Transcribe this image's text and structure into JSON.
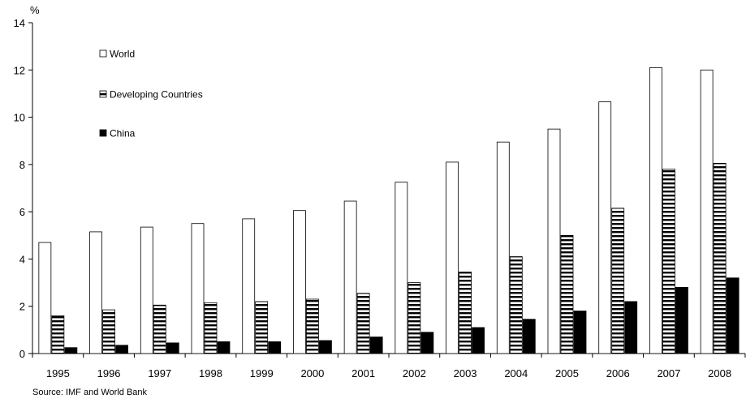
{
  "chart_data": {
    "type": "bar",
    "unit_label": "%",
    "categories": [
      "1995",
      "1996",
      "1997",
      "1998",
      "1999",
      "2000",
      "2001",
      "2002",
      "2003",
      "2004",
      "2005",
      "2006",
      "2007",
      "2008"
    ],
    "series": [
      {
        "name": "World",
        "pattern": "white",
        "values": [
          4.7,
          5.15,
          5.35,
          5.5,
          5.7,
          6.05,
          6.45,
          7.25,
          8.1,
          8.95,
          9.5,
          10.65,
          12.1,
          12.0
        ]
      },
      {
        "name": "Developing Countries",
        "pattern": "striped",
        "values": [
          1.6,
          1.85,
          2.05,
          2.15,
          2.2,
          2.3,
          2.55,
          3.0,
          3.45,
          4.1,
          5.0,
          6.15,
          7.8,
          8.05
        ]
      },
      {
        "name": "China",
        "pattern": "black",
        "values": [
          0.25,
          0.35,
          0.45,
          0.5,
          0.5,
          0.55,
          0.7,
          0.9,
          1.1,
          1.45,
          1.8,
          2.2,
          2.8,
          3.2
        ]
      }
    ],
    "ylim": [
      0,
      14
    ],
    "yticks": [
      0,
      2,
      4,
      6,
      8,
      10,
      12,
      14
    ],
    "legend_position": "top-left",
    "grid": false,
    "source": "Source: IMF and World Bank"
  },
  "colors": {
    "bar_fill": "#ffffff",
    "bar_stroke": "#000000",
    "stripe": "#000000",
    "china": "#000000"
  }
}
